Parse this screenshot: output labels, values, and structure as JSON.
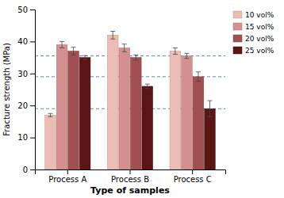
{
  "chart_data": {
    "type": "bar",
    "categories": [
      "Process A",
      "Process B",
      "Process C"
    ],
    "series": [
      {
        "name": "10 vol%",
        "color": "#ebbdb5",
        "values": [
          17,
          42,
          37
        ],
        "errors": [
          0.5,
          1.2,
          1.0
        ]
      },
      {
        "name": "15 vol%",
        "color": "#d49090",
        "values": [
          39,
          38,
          35.5
        ],
        "errors": [
          1.0,
          1.2,
          0.8
        ]
      },
      {
        "name": "20 vol%",
        "color": "#a05050",
        "values": [
          37,
          35,
          29
        ],
        "errors": [
          1.2,
          0.8,
          1.5
        ]
      },
      {
        "name": "25 vol%",
        "color": "#5c1515",
        "values": [
          35,
          26,
          19
        ],
        "errors": [
          0.6,
          0.7,
          2.5
        ]
      }
    ],
    "hlines": [
      35.5,
      29,
      19
    ],
    "xlabel": "Type of samples",
    "ylabel": "Fracture strength (MPa)",
    "ylim": [
      0,
      50
    ],
    "yticks": [
      0,
      10,
      20,
      30,
      40,
      50
    ],
    "grid": false,
    "legend": "upper right"
  }
}
